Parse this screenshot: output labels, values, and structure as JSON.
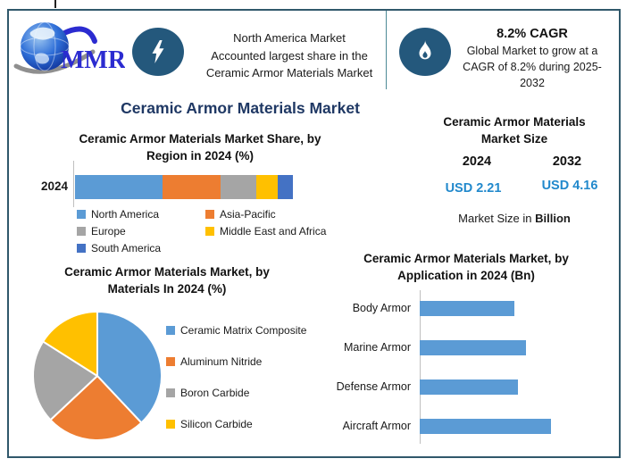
{
  "header": {
    "logo_text": "MMR",
    "highlight_lines": [
      "North America Market",
      "Accounted largest share in the",
      "Ceramic Armor Materials Market"
    ],
    "cagr_title": "8.2% CAGR",
    "cagr_body": "Global Market to grow at a CAGR of 8.2% during 2025-2032"
  },
  "main_title": "Ceramic Armor Materials Market",
  "market_size": {
    "title_lines": [
      "Ceramic Armor Materials",
      "Market Size"
    ],
    "year_left": "2024",
    "year_right": "2032",
    "value_left": "USD 2.21",
    "value_right": "USD 4.16",
    "note_prefix": "Market Size in ",
    "note_bold": "Billion"
  },
  "colors": {
    "frame_border": "#30586B",
    "header_divider": "#4D8A96",
    "icon_circle": "#24587C",
    "title_navy": "#1F3864",
    "usd_blue": "#2289CC",
    "axis_gray": "#BFBFBF"
  },
  "chart_data": [
    {
      "id": "region_share",
      "type": "bar",
      "variant": "stacked-horizontal",
      "title": "Ceramic Armor Materials Market Share, by Region in 2024 (%)",
      "title_lines": [
        "Ceramic Armor Materials Market Share, by",
        "Region in 2024 (%)"
      ],
      "categories": [
        "2024"
      ],
      "series": [
        {
          "name": "North America",
          "value": 40,
          "color": "#5B9BD5"
        },
        {
          "name": "Asia-Pacific",
          "value": 27,
          "color": "#ED7D31"
        },
        {
          "name": "Europe",
          "value": 16,
          "color": "#A5A5A5"
        },
        {
          "name": "Middle East and Africa",
          "value": 10,
          "color": "#FFC000"
        },
        {
          "name": "South America",
          "value": 7,
          "color": "#4472C4"
        }
      ],
      "unit": "%",
      "xlim": [
        0,
        100
      ],
      "legend_position": "bottom",
      "grid": false
    },
    {
      "id": "materials_pie",
      "type": "pie",
      "title": "Ceramic Armor Materials Market, by Materials In 2024 (%)",
      "title_lines": [
        "Ceramic Armor Materials Market, by",
        "Materials In 2024 (%)"
      ],
      "start_angle_deg": 0,
      "slices": [
        {
          "name": "Ceramic Matrix Composite",
          "value": 38,
          "color": "#5B9BD5"
        },
        {
          "name": "Aluminum Nitride",
          "value": 25,
          "color": "#ED7D31"
        },
        {
          "name": "Boron Carbide",
          "value": 21,
          "color": "#A5A5A5"
        },
        {
          "name": "Silicon Carbide",
          "value": 16,
          "color": "#FFC000"
        }
      ],
      "unit": "%",
      "legend_position": "right"
    },
    {
      "id": "application_bars",
      "type": "bar",
      "variant": "horizontal",
      "title": "Ceramic Armor Materials Market, by Application in 2024 (Bn)",
      "title_lines": [
        "Ceramic Armor Materials Market, by",
        "Application in 2024 (Bn)"
      ],
      "categories": [
        "Body Armor",
        "Marine Armor",
        "Defense Armor",
        "Aircraft Armor"
      ],
      "values": [
        0.48,
        0.54,
        0.5,
        0.67
      ],
      "axis_max": 0.75,
      "bar_color": "#5B9BD5",
      "unit": "Bn",
      "grid": false
    }
  ]
}
